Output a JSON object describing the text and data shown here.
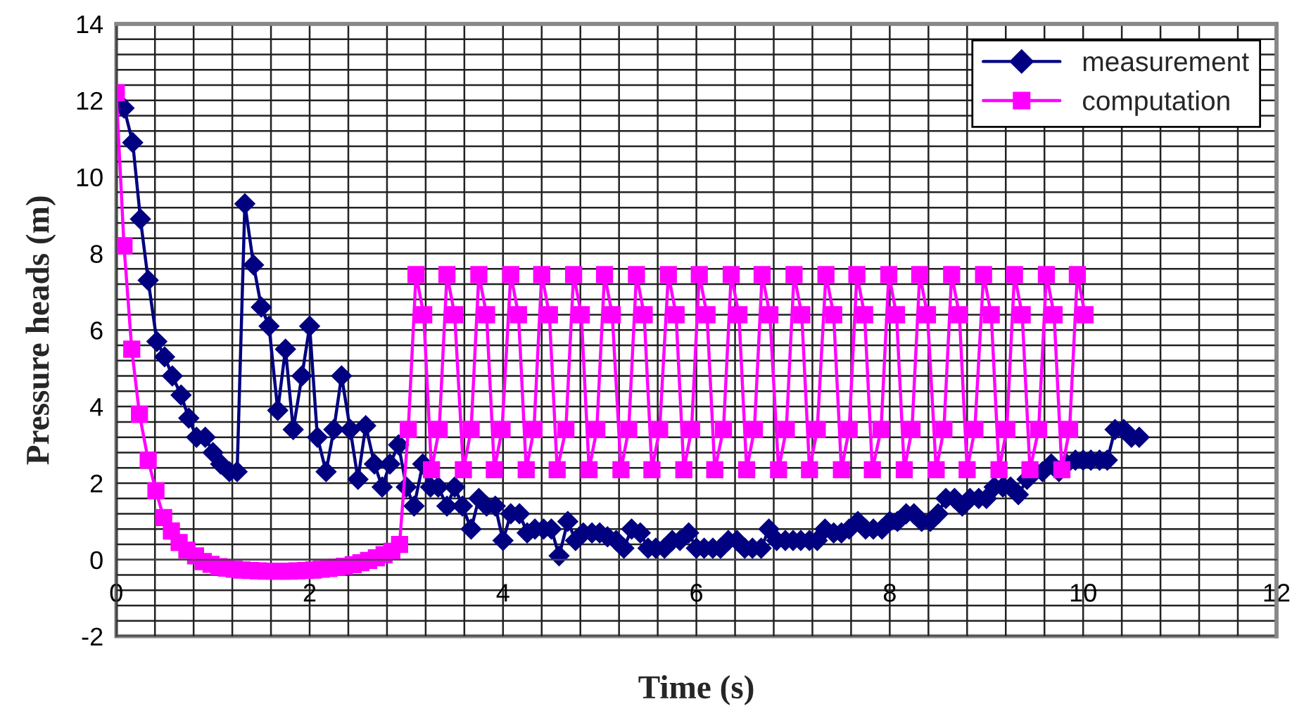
{
  "chart_data": {
    "type": "line",
    "xlabel": "Time (s)",
    "ylabel": "Pressure heads (m)",
    "xlim": [
      0,
      12
    ],
    "ylim": [
      -2,
      14
    ],
    "xticks": [
      0,
      {
        "value": 0.4,
        "label": null
      },
      {
        "value": 0.8,
        "label": null
      },
      {
        "value": 1.2,
        "label": null
      },
      {
        "value": 1.6,
        "label": null
      },
      2,
      {
        "value": 2.4,
        "label": null
      },
      {
        "value": 2.8,
        "label": null
      },
      {
        "value": 3.2,
        "label": null
      },
      {
        "value": 3.6,
        "label": null
      },
      4,
      {
        "value": 4.4,
        "label": null
      },
      {
        "value": 4.8,
        "label": null
      },
      {
        "value": 5.2,
        "label": null
      },
      {
        "value": 5.6,
        "label": null
      },
      6,
      {
        "value": 6.4,
        "label": null
      },
      {
        "value": 6.8,
        "label": null
      },
      {
        "value": 7.2,
        "label": null
      },
      {
        "value": 7.6,
        "label": null
      },
      8,
      {
        "value": 8.4,
        "label": null
      },
      {
        "value": 8.8,
        "label": null
      },
      {
        "value": 9.2,
        "label": null
      },
      {
        "value": 9.6,
        "label": null
      },
      10,
      {
        "value": 10.4,
        "label": null
      },
      {
        "value": 10.8,
        "label": null
      },
      {
        "value": 11.2,
        "label": null
      },
      {
        "value": 11.6,
        "label": null
      },
      12
    ],
    "yticks": [
      -2,
      {
        "value": -1.6,
        "label": null
      },
      {
        "value": -1.2,
        "label": null
      },
      {
        "value": -0.8,
        "label": null
      },
      {
        "value": -0.4,
        "label": null
      },
      0,
      {
        "value": 0.4,
        "label": null
      },
      {
        "value": 0.8,
        "label": null
      },
      {
        "value": 1.2,
        "label": null
      },
      {
        "value": 1.6,
        "label": null
      },
      2,
      {
        "value": 2.4,
        "label": null
      },
      {
        "value": 2.8,
        "label": null
      },
      {
        "value": 3.2,
        "label": null
      },
      {
        "value": 3.6,
        "label": null
      },
      4,
      {
        "value": 4.4,
        "label": null
      },
      {
        "value": 4.8,
        "label": null
      },
      {
        "value": 5.2,
        "label": null
      },
      {
        "value": 5.6,
        "label": null
      },
      6,
      {
        "value": 6.4,
        "label": null
      },
      {
        "value": 6.8,
        "label": null
      },
      {
        "value": 7.2,
        "label": null
      },
      {
        "value": 7.6,
        "label": null
      },
      8,
      {
        "value": 8.4,
        "label": null
      },
      {
        "value": 8.8,
        "label": null
      },
      {
        "value": 9.2,
        "label": null
      },
      {
        "value": 9.6,
        "label": null
      },
      10,
      {
        "value": 10.4,
        "label": null
      },
      {
        "value": 10.8,
        "label": null
      },
      {
        "value": 11.2,
        "label": null
      },
      {
        "value": 11.6,
        "label": null
      },
      12,
      {
        "value": 12.4,
        "label": null
      },
      {
        "value": 12.8,
        "label": null
      },
      {
        "value": 13.2,
        "label": null
      },
      {
        "value": 13.6,
        "label": null
      },
      14
    ],
    "grid": true,
    "legend": "top right",
    "series": [
      {
        "name": "measurement",
        "color": "#000080",
        "marker": "diamond",
        "x": [
          0,
          0.08,
          0.17,
          0.25,
          0.33,
          0.42,
          0.5,
          0.58,
          0.67,
          0.75,
          0.83,
          0.92,
          1,
          1.08,
          1.17,
          1.25,
          1.33,
          1.42,
          1.5,
          1.58,
          1.67,
          1.75,
          1.83,
          1.92,
          2,
          2.08,
          2.17,
          2.25,
          2.33,
          2.42,
          2.5,
          2.58,
          2.67,
          2.75,
          2.83,
          2.92,
          3,
          3.08,
          3.17,
          3.25,
          3.33,
          3.42,
          3.5,
          3.58,
          3.67,
          3.75,
          3.83,
          3.92,
          4,
          4.08,
          4.17,
          4.25,
          4.33,
          4.42,
          4.5,
          4.58,
          4.67,
          4.75,
          4.83,
          4.92,
          5,
          5.08,
          5.17,
          5.25,
          5.33,
          5.42,
          5.5,
          5.58,
          5.67,
          5.75,
          5.83,
          5.92,
          6,
          6.08,
          6.17,
          6.25,
          6.33,
          6.42,
          6.5,
          6.58,
          6.67,
          6.75,
          6.83,
          6.92,
          7,
          7.08,
          7.17,
          7.25,
          7.33,
          7.42,
          7.5,
          7.58,
          7.67,
          7.75,
          7.83,
          7.92,
          8,
          8.08,
          8.17,
          8.25,
          8.33,
          8.42,
          8.5,
          8.58,
          8.67,
          8.75,
          8.83,
          8.92,
          9,
          9.08,
          9.17,
          9.25,
          9.33,
          9.42,
          9.5,
          9.58,
          9.67,
          9.75,
          9.83,
          9.92,
          10,
          10.08,
          10.17,
          10.25,
          10.33,
          10.42,
          10.5,
          10.58
        ],
        "values": [
          12.0,
          11.8,
          10.9,
          8.9,
          7.3,
          5.7,
          5.3,
          4.8,
          4.3,
          3.7,
          3.2,
          3.2,
          2.8,
          2.5,
          2.3,
          2.3,
          9.3,
          7.7,
          6.6,
          6.1,
          3.9,
          5.5,
          3.4,
          4.8,
          6.1,
          3.2,
          2.3,
          3.4,
          4.8,
          3.4,
          2.1,
          3.5,
          2.5,
          1.9,
          2.5,
          3.0,
          1.9,
          1.4,
          2.5,
          1.9,
          1.9,
          1.4,
          1.9,
          1.4,
          0.8,
          1.6,
          1.4,
          1.4,
          0.5,
          1.2,
          1.2,
          0.7,
          0.8,
          0.8,
          0.8,
          0.1,
          1.0,
          0.5,
          0.7,
          0.7,
          0.7,
          0.6,
          0.5,
          0.3,
          0.8,
          0.7,
          0.3,
          0.3,
          0.3,
          0.5,
          0.5,
          0.7,
          0.3,
          0.3,
          0.3,
          0.3,
          0.5,
          0.5,
          0.3,
          0.3,
          0.3,
          0.8,
          0.5,
          0.5,
          0.5,
          0.5,
          0.5,
          0.5,
          0.8,
          0.7,
          0.7,
          0.8,
          1.0,
          0.8,
          0.8,
          0.8,
          1.0,
          1.0,
          1.2,
          1.2,
          1.0,
          1.0,
          1.2,
          1.6,
          1.6,
          1.4,
          1.6,
          1.6,
          1.6,
          1.9,
          1.9,
          1.9,
          1.7,
          2.1,
          2.3,
          2.3,
          2.5,
          2.3,
          2.5,
          2.6,
          2.6,
          2.6,
          2.6,
          2.6,
          3.4,
          3.4,
          3.2,
          3.2
        ]
      },
      {
        "name": "computation",
        "color": "#ff00ff",
        "marker": "square",
        "x": [
          0,
          0.08,
          0.16,
          0.24,
          0.33,
          0.41,
          0.49,
          0.57,
          0.65,
          0.73,
          0.82,
          0.9,
          0.98,
          1.06,
          1.14,
          1.22,
          1.3,
          1.39,
          1.47,
          1.55,
          1.63,
          1.71,
          1.79,
          1.87,
          1.96,
          2.04,
          2.12,
          2.2,
          2.28,
          2.36,
          2.45,
          2.53,
          2.61,
          2.69,
          2.77,
          2.85,
          2.93,
          3.02,
          3.1,
          3.18,
          3.26,
          3.34,
          3.42,
          3.5,
          3.59,
          3.67,
          3.75,
          3.83,
          3.91,
          3.99,
          4.08,
          4.16,
          4.24,
          4.32,
          4.4,
          4.48,
          4.56,
          4.65,
          4.73,
          4.81,
          4.89,
          4.97,
          5.05,
          5.13,
          5.22,
          5.3,
          5.38,
          5.46,
          5.54,
          5.62,
          5.71,
          5.79,
          5.87,
          5.95,
          6.03,
          6.11,
          6.19,
          6.28,
          6.36,
          6.44,
          6.52,
          6.6,
          6.68,
          6.76,
          6.85,
          6.93,
          7.01,
          7.09,
          7.17,
          7.25,
          7.34,
          7.42,
          7.5,
          7.58,
          7.66,
          7.74,
          7.82,
          7.91,
          7.99,
          8.07,
          8.15,
          8.23,
          8.31,
          8.39,
          8.48,
          8.56,
          8.64,
          8.72,
          8.8,
          8.88,
          8.97,
          9.05,
          9.13,
          9.21,
          9.29,
          9.37,
          9.45,
          9.54,
          9.62,
          9.7,
          9.78,
          9.86,
          9.94,
          10.02
        ],
        "values": [
          12.2,
          8.2,
          5.5,
          3.8,
          2.6,
          1.8,
          1.1,
          0.75,
          0.45,
          0.25,
          0.1,
          -0.05,
          -0.12,
          -0.18,
          -0.22,
          -0.25,
          -0.27,
          -0.28,
          -0.29,
          -0.3,
          -0.3,
          -0.3,
          -0.3,
          -0.29,
          -0.28,
          -0.27,
          -0.25,
          -0.23,
          -0.2,
          -0.17,
          -0.13,
          -0.08,
          -0.02,
          0.05,
          0.13,
          0.22,
          0.4,
          3.4,
          7.45,
          6.4,
          2.35,
          3.4,
          7.45,
          6.4,
          2.35,
          3.4,
          7.45,
          6.4,
          2.35,
          3.4,
          7.45,
          6.4,
          2.35,
          3.4,
          7.45,
          6.4,
          2.35,
          3.4,
          7.45,
          6.4,
          2.35,
          3.4,
          7.45,
          6.4,
          2.35,
          3.4,
          7.45,
          6.4,
          2.35,
          3.4,
          7.45,
          6.4,
          2.35,
          3.4,
          7.45,
          6.4,
          2.35,
          3.4,
          7.45,
          6.4,
          2.35,
          3.4,
          7.45,
          6.4,
          2.35,
          3.4,
          7.45,
          6.4,
          2.35,
          3.4,
          7.45,
          6.4,
          2.35,
          3.4,
          7.45,
          6.4,
          2.35,
          3.4,
          7.45,
          6.4,
          2.35,
          3.4,
          7.45,
          6.4,
          2.35,
          3.4,
          7.45,
          6.4,
          2.35,
          3.4,
          7.45,
          6.4,
          2.35,
          3.4,
          7.45,
          6.4,
          2.35,
          3.4,
          7.45,
          6.4,
          2.35,
          3.4,
          7.45,
          6.4
        ]
      }
    ]
  }
}
